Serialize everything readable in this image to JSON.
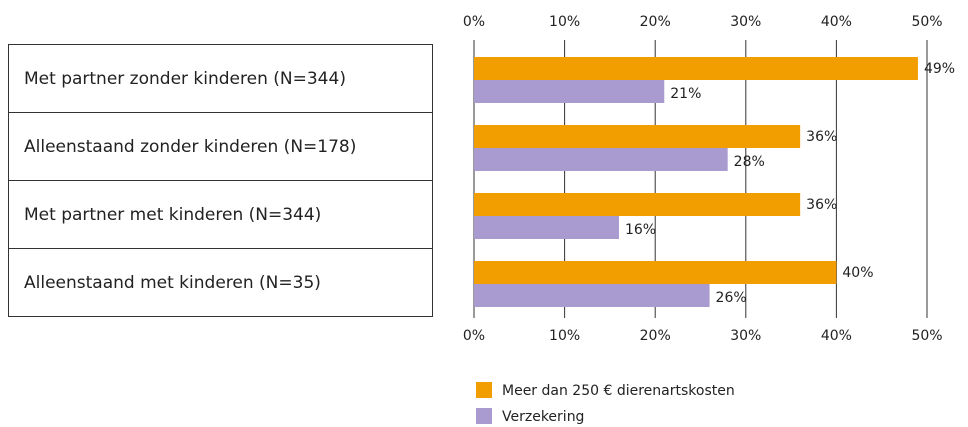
{
  "chart_data": {
    "type": "bar",
    "orientation": "horizontal",
    "categories": [
      "Met partner zonder kinderen (N=344)",
      "Alleenstaand zonder kinderen (N=178)",
      "Met partner met kinderen (N=344)",
      "Alleenstaand met kinderen (N=35)"
    ],
    "series": [
      {
        "name": "Meer dan 250 € dierenartskosten",
        "color": "#f29e00",
        "values": [
          49,
          36,
          36,
          40
        ],
        "value_labels": [
          "49%",
          "36%",
          "36%",
          "40%"
        ]
      },
      {
        "name": "Verzekering",
        "color": "#a99ad0",
        "values": [
          21,
          28,
          16,
          26
        ],
        "value_labels": [
          "21%",
          "28%",
          "16%",
          "26%"
        ]
      }
    ],
    "xlim": [
      0,
      50
    ],
    "xticks": [
      {
        "value": 0,
        "label": "0%"
      },
      {
        "value": 10,
        "label": "10%"
      },
      {
        "value": 20,
        "label": "20%"
      },
      {
        "value": 30,
        "label": "30%"
      },
      {
        "value": 40,
        "label": "40%"
      },
      {
        "value": 50,
        "label": "50%"
      }
    ],
    "grid": true,
    "legend": "bottom"
  }
}
